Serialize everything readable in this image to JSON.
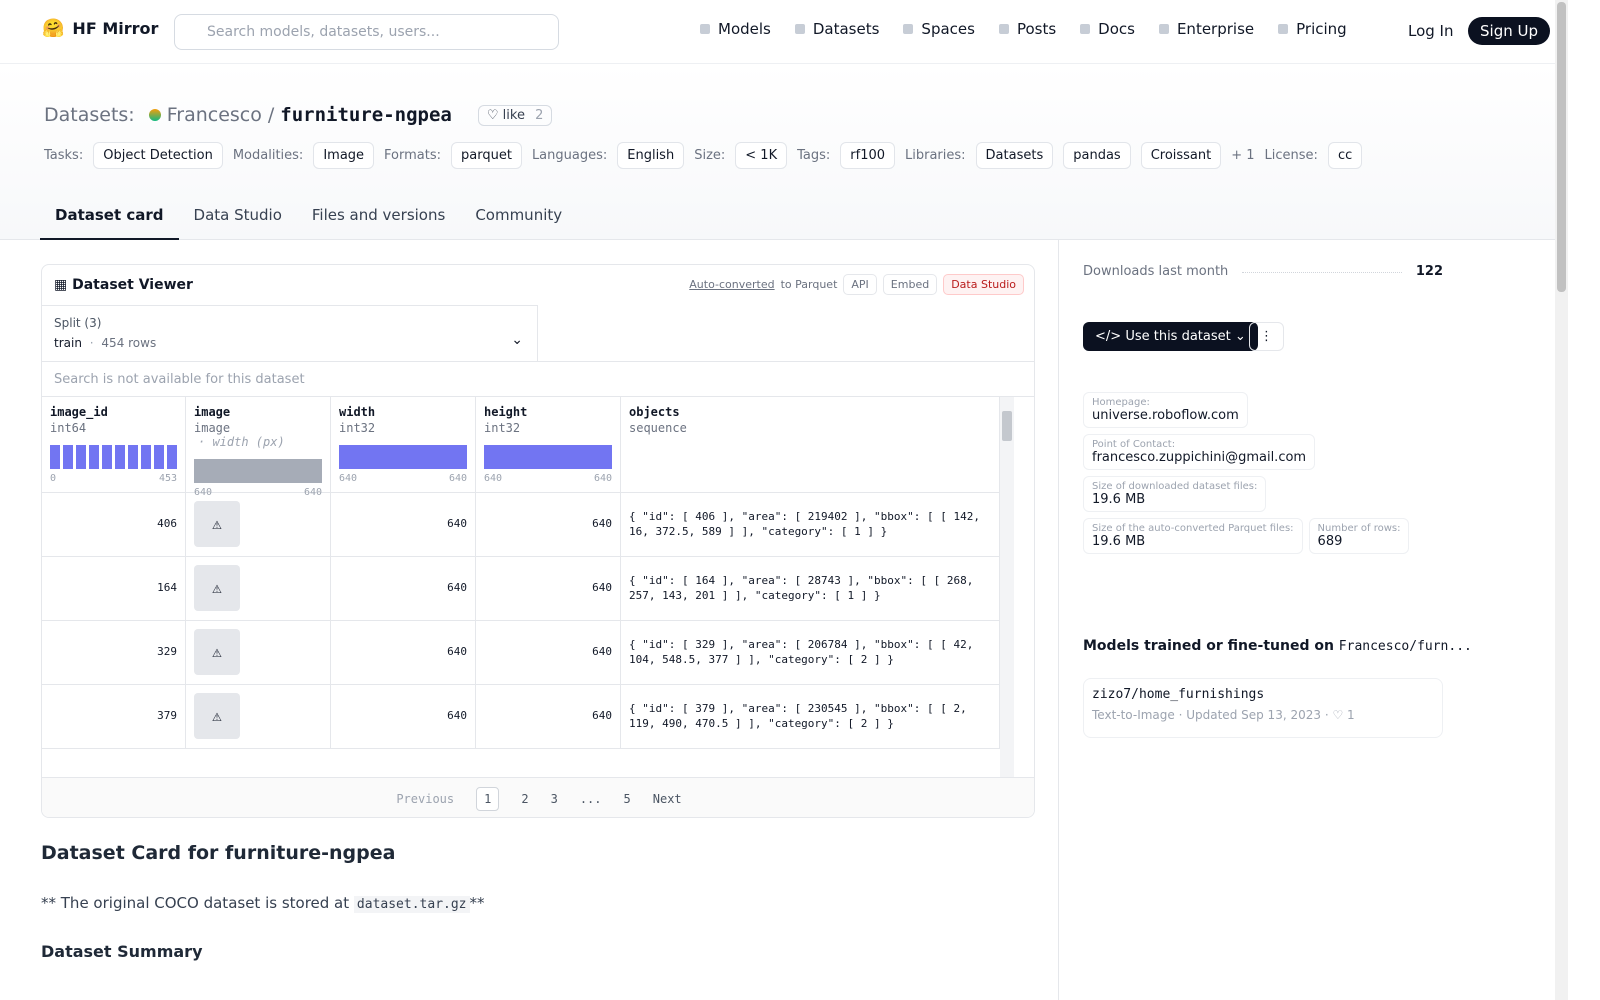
{
  "nav": {
    "brand": "HF Mirror",
    "search_placeholder": "Search models, datasets, users...",
    "links": [
      "Models",
      "Datasets",
      "Spaces",
      "Posts",
      "Docs",
      "Enterprise",
      "Pricing"
    ],
    "login": "Log In",
    "signup": "Sign Up"
  },
  "header": {
    "section": "Datasets:",
    "owner": "Francesco",
    "separator": "/",
    "name": "furniture-ngpea",
    "like": "like",
    "like_count": 2,
    "meta": [
      {
        "label": "Tasks:",
        "items": [
          "Object Detection"
        ]
      },
      {
        "label": "Modalities:",
        "items": [
          "Image"
        ]
      },
      {
        "label": "Formats:",
        "items": [
          "parquet"
        ]
      },
      {
        "label": "Languages:",
        "items": [
          "English"
        ]
      },
      {
        "label": "Size:",
        "items": [
          "< 1K"
        ]
      },
      {
        "label": "Tags:",
        "items": [
          "rf100"
        ]
      },
      {
        "label": "Libraries:",
        "items": [
          "Datasets",
          "pandas",
          "Croissant"
        ],
        "more": "+ 1"
      },
      {
        "label": "License:",
        "items": [
          "cc"
        ]
      }
    ]
  },
  "tabs": [
    "Dataset card",
    "Data Studio",
    "Files and versions",
    "Community"
  ],
  "viewer": {
    "title": "Dataset Viewer",
    "auto_converted": "Auto-converted",
    "to_parquet": "to Parquet",
    "buttons": [
      "API",
      "Embed",
      "Data Studio"
    ],
    "split_label": "Split (3)",
    "split": "train",
    "split_sep": "·",
    "rows_count": "454 rows",
    "search": "Search is not available for this dataset",
    "columns": [
      {
        "name": "image_id",
        "type": "int64",
        "min": "0",
        "max": "453"
      },
      {
        "name": "image",
        "type": "image",
        "extra": "· width (px)",
        "min": "640",
        "max": "640"
      },
      {
        "name": "width",
        "type": "int32",
        "min": "640",
        "max": "640"
      },
      {
        "name": "height",
        "type": "int32",
        "min": "640",
        "max": "640"
      },
      {
        "name": "objects",
        "type": "sequence"
      }
    ],
    "rows": [
      [
        406,
        640,
        640,
        "{ \"id\": [ 406 ], \"area\": [ 219402 ], \"bbox\": [ [ 142, 16, 372.5, 589 ] ], \"category\": [ 1 ] }"
      ],
      [
        164,
        640,
        640,
        "{ \"id\": [ 164 ], \"area\": [ 28743 ], \"bbox\": [ [ 268, 257, 143, 201 ] ], \"category\": [ 1 ] }"
      ],
      [
        329,
        640,
        640,
        "{ \"id\": [ 329 ], \"area\": [ 206784 ], \"bbox\": [ [ 42, 104, 548.5, 377 ] ], \"category\": [ 2 ] }"
      ],
      [
        379,
        640,
        640,
        "{ \"id\": [ 379 ], \"area\": [ 230545 ], \"bbox\": [ [ 2, 119, 490, 470.5 ] ], \"category\": [ 2 ] }"
      ]
    ],
    "pagination": {
      "previous": "Previous",
      "pages": [
        "1",
        "2",
        "3",
        "...",
        "5"
      ],
      "next": "Next"
    }
  },
  "card": {
    "title": "Dataset Card for furniture-ngpea",
    "note_before": "** The original COCO dataset is stored at",
    "code": "dataset.tar.gz",
    "note_after": "**",
    "summary": "Dataset Summary"
  },
  "sidebar": {
    "downloads_label": "Downloads last month",
    "downloads": 122,
    "use_button": "Use this dataset",
    "fields": [
      {
        "label": "Homepage:",
        "value": "universe.roboflow.com"
      },
      {
        "label": "Point of Contact:",
        "value": "francesco.zuppichini@gmail.com"
      },
      {
        "label": "Size of downloaded dataset files:",
        "value": "19.6 MB"
      },
      {
        "label": "Size of the auto-converted Parquet files:",
        "value": "19.6 MB"
      },
      {
        "label": "Number of rows:",
        "value": "689"
      }
    ],
    "models_title": "Models trained or fine-tuned on",
    "models_repo": "Francesco/furn...",
    "model": {
      "name": "zizo7/home_furnishings",
      "task": "Text-to-Image",
      "updated": "Updated Sep 13, 2023",
      "likes": 1
    }
  }
}
